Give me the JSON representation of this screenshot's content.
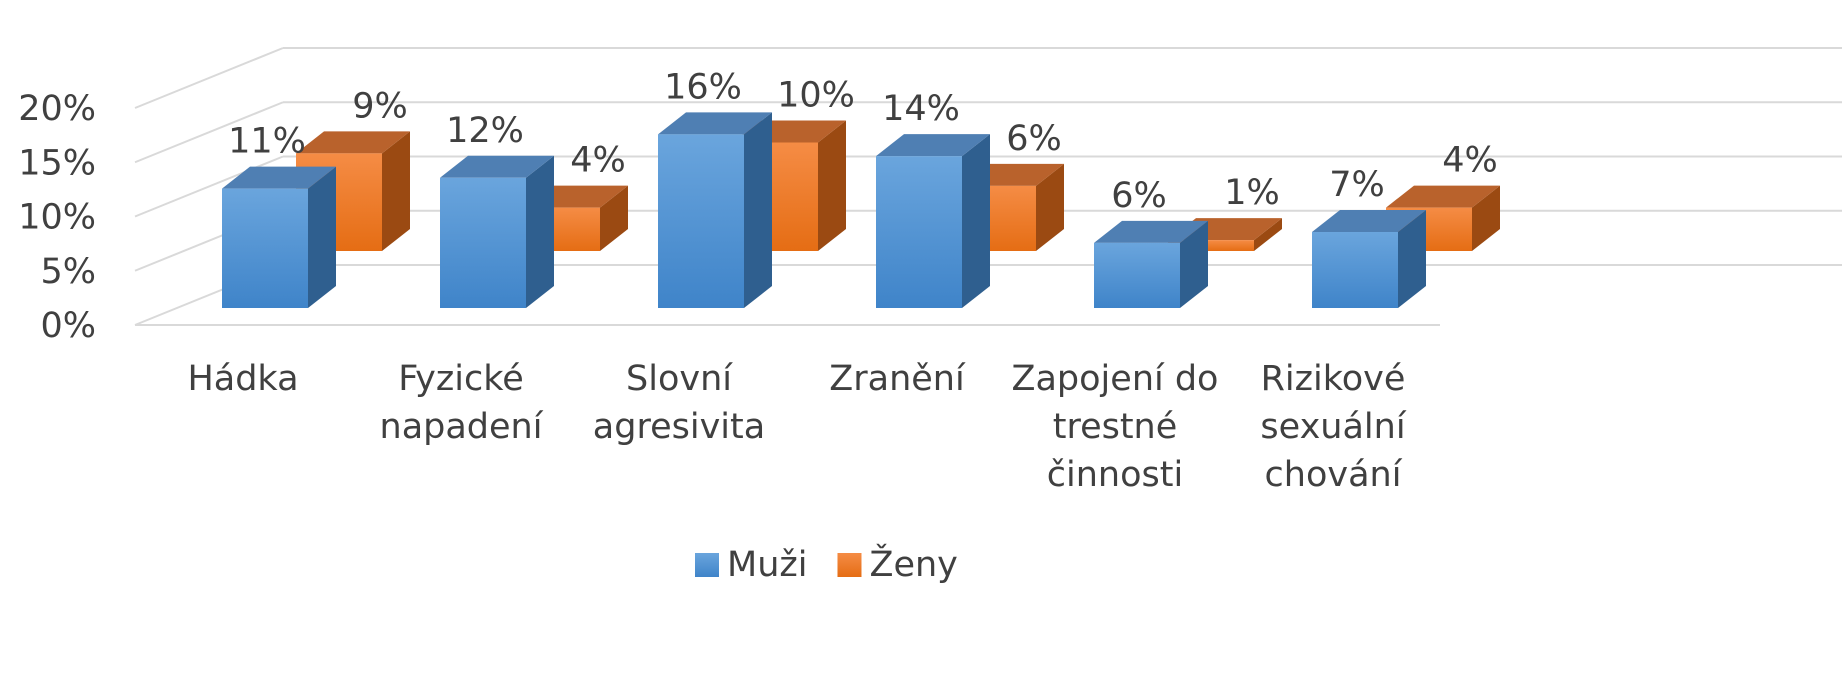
{
  "chart_data": {
    "type": "bar3d",
    "categories": [
      "Hádka",
      "Fyzické napadení",
      "Slovní agresivita",
      "Zranění",
      "Zapojení do trestné činnosti",
      "Rizikové sexuální chování"
    ],
    "series": [
      {
        "name": "Muži",
        "color": "#5b9bd5",
        "values": [
          11,
          12,
          16,
          14,
          6,
          7
        ],
        "value_labels": [
          "11%",
          "12%",
          "16%",
          "14%",
          "6%",
          "7%"
        ]
      },
      {
        "name": "Ženy",
        "color": "#ed7d31",
        "values": [
          9,
          4,
          10,
          6,
          1,
          4
        ],
        "value_labels": [
          "9%",
          "4%",
          "10%",
          "6%",
          "1%",
          "4%"
        ]
      }
    ],
    "ylim": [
      0,
      20
    ],
    "yticks": [
      {
        "value": 0,
        "label": "0%"
      },
      {
        "value": 5,
        "label": "5%"
      },
      {
        "value": 10,
        "label": "10%"
      },
      {
        "value": 15,
        "label": "15%"
      },
      {
        "value": 20,
        "label": "20%"
      }
    ],
    "grid": true,
    "legend": "bottom"
  }
}
